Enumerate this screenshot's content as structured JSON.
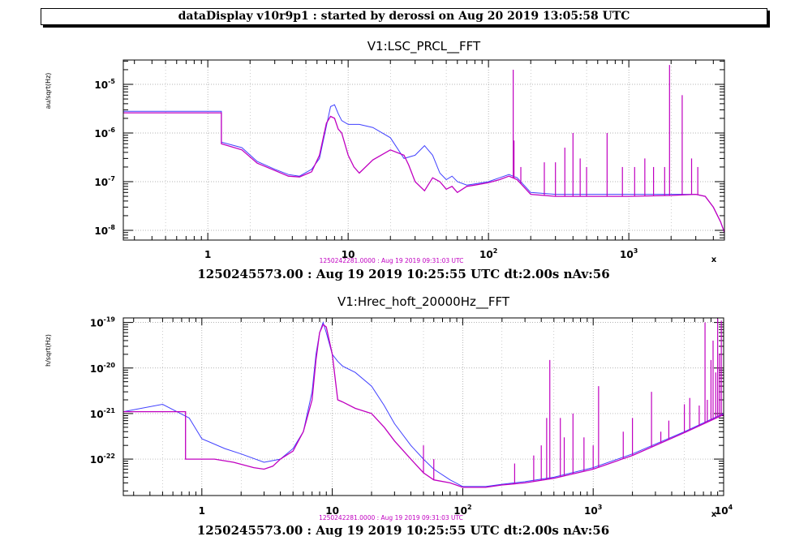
{
  "header": {
    "text": "dataDisplay v10r9p1 : started by derossi on Aug 20 2019 13:05:58 UTC"
  },
  "colors": {
    "series_blue": "#4040ff",
    "series_magenta": "#c000c0",
    "grid": "#9a9a9a"
  },
  "chart_data": [
    {
      "type": "line",
      "title": "V1:LSC_PRCL__FFT",
      "ylabel": "au/sqrt(Hz)",
      "xscale": "log",
      "yscale": "log",
      "xlim": [
        0.25,
        4800
      ],
      "ylim_exp": [
        -8.2,
        -4.5
      ],
      "grid": true,
      "xticks": [
        {
          "v": 1,
          "label": "1",
          "sup": ""
        },
        {
          "v": 10,
          "label": "10",
          "sup": ""
        },
        {
          "v": 100,
          "label": "10",
          "sup": "2"
        },
        {
          "v": 1000,
          "label": "10",
          "sup": "3"
        }
      ],
      "yticks": [
        {
          "e": -5,
          "label": "10",
          "sup": "-5"
        },
        {
          "e": -6,
          "label": "10",
          "sup": "-6"
        },
        {
          "e": -7,
          "label": "10",
          "sup": "-7"
        },
        {
          "e": -8,
          "label": "10",
          "sup": "-8"
        }
      ],
      "clipped_label": "x",
      "timestamp_small": "1250242281.0000 : Aug 19 2019 09:31:03 UTC",
      "footer": "1250245573.00 : Aug 19 2019 10:25:55 UTC dt:2.00s nAv:56",
      "series": [
        {
          "color": "blue",
          "x": [
            0.25,
            1.25,
            1.25,
            1.75,
            2.25,
            3.0,
            3.75,
            4.5,
            5.5,
            6.25,
            7.0,
            7.5,
            8.0,
            8.5,
            9.0,
            10.0,
            12.0,
            15.0,
            20.0,
            25.0,
            30.0,
            35.0,
            40.0,
            45.0,
            50.0,
            55.0,
            60.0,
            70.0,
            80.0,
            100.0,
            120.0,
            140.0,
            160.0,
            200.0,
            300.0,
            500.0,
            1000.0,
            2000.0,
            3000.0,
            3500.0,
            4000.0,
            4500.0,
            4800.0
          ],
          "y": [
            2.8e-06,
            2.8e-06,
            6.5e-07,
            5e-07,
            2.6e-07,
            1.8e-07,
            1.4e-07,
            1.3e-07,
            1.8e-07,
            3e-07,
            1.4e-06,
            3.5e-06,
            3.8e-06,
            2.5e-06,
            1.8e-06,
            1.5e-06,
            1.5e-06,
            1.3e-06,
            8e-07,
            3e-07,
            3.5e-07,
            5.5e-07,
            3.5e-07,
            1.5e-07,
            1.1e-07,
            1.3e-07,
            1e-07,
            8.5e-08,
            9e-08,
            1e-07,
            1.2e-07,
            1.4e-07,
            1.2e-07,
            6e-08,
            5.5e-08,
            5.5e-08,
            5.5e-08,
            5.5e-08,
            5.5e-08,
            5e-08,
            3e-08,
            1.5e-08,
            9e-09
          ]
        },
        {
          "color": "magenta",
          "x": [
            0.25,
            1.25,
            1.25,
            1.75,
            2.25,
            3.0,
            3.75,
            4.5,
            5.5,
            6.25,
            7.0,
            7.5,
            8.0,
            8.5,
            9.0,
            10.0,
            11.0,
            12.0,
            15.0,
            20.0,
            25.0,
            27.0,
            30.0,
            35.0,
            40.0,
            45.0,
            50.0,
            55.0,
            60.0,
            70.0,
            80.0,
            100.0,
            120.0,
            140.0,
            160.0,
            200.0,
            300.0,
            500.0,
            1000.0,
            2000.0,
            3000.0,
            3500.0,
            4000.0,
            4500.0,
            4800.0
          ],
          "y": [
            2.6e-06,
            2.6e-06,
            6e-07,
            4.5e-07,
            2.4e-07,
            1.7e-07,
            1.3e-07,
            1.25e-07,
            1.6e-07,
            3.5e-07,
            1.6e-06,
            2.2e-06,
            2e-06,
            1.2e-06,
            1e-06,
            3.5e-07,
            2e-07,
            1.5e-07,
            2.8e-07,
            4.5e-07,
            3.5e-07,
            2.2e-07,
            1e-07,
            6.5e-08,
            1.2e-07,
            1e-07,
            7e-08,
            8e-08,
            6e-08,
            8e-08,
            8.5e-08,
            9.5e-08,
            1.1e-07,
            1.3e-07,
            1.1e-07,
            5.5e-08,
            5e-08,
            5e-08,
            5e-08,
            5.2e-08,
            5.5e-08,
            5e-08,
            3e-08,
            1.5e-08,
            9e-09
          ]
        }
      ],
      "lines_hz": [
        {
          "f": 150,
          "top": 2e-05
        },
        {
          "f": 152,
          "top": 7e-07
        },
        {
          "f": 170,
          "top": 2e-07
        },
        {
          "f": 250,
          "top": 2.5e-07
        },
        {
          "f": 300,
          "top": 2.5e-07
        },
        {
          "f": 350,
          "top": 5e-07
        },
        {
          "f": 400,
          "top": 1e-06
        },
        {
          "f": 450,
          "top": 3e-07
        },
        {
          "f": 500,
          "top": 2e-07
        },
        {
          "f": 700,
          "top": 1e-06
        },
        {
          "f": 900,
          "top": 2e-07
        },
        {
          "f": 1100,
          "top": 2e-07
        },
        {
          "f": 1300,
          "top": 3e-07
        },
        {
          "f": 1500,
          "top": 2e-07
        },
        {
          "f": 1800,
          "top": 2e-07
        },
        {
          "f": 1950,
          "top": 2.5e-05
        },
        {
          "f": 2400,
          "top": 6e-06
        },
        {
          "f": 2800,
          "top": 3e-07
        },
        {
          "f": 3100,
          "top": 2e-07
        }
      ]
    },
    {
      "type": "line",
      "title": "V1:Hrec_hoft_20000Hz__FFT",
      "ylabel": "h/sqrt(Hz)",
      "xscale": "log",
      "yscale": "log",
      "xlim": [
        0.25,
        10000
      ],
      "ylim_exp": [
        -22.8,
        -18.9
      ],
      "grid": true,
      "xticks": [
        {
          "v": 1,
          "label": "1",
          "sup": ""
        },
        {
          "v": 10,
          "label": "10",
          "sup": ""
        },
        {
          "v": 100,
          "label": "10",
          "sup": "2"
        },
        {
          "v": 1000,
          "label": "10",
          "sup": "3"
        },
        {
          "v": 10000,
          "label": "10",
          "sup": "4"
        }
      ],
      "yticks": [
        {
          "e": -19,
          "label": "10",
          "sup": "-19"
        },
        {
          "e": -20,
          "label": "10",
          "sup": "-20"
        },
        {
          "e": -21,
          "label": "10",
          "sup": "-21"
        },
        {
          "e": -22,
          "label": "10",
          "sup": "-22"
        }
      ],
      "clipped_label": "x",
      "timestamp_small": "1250242281.0000 : Aug 19 2019 09:31:03 UTC",
      "footer": "1250245573.00 : Aug 19 2019 10:25:55 UTC dt:2.00s nAv:56",
      "series": [
        {
          "color": "blue",
          "x": [
            0.25,
            0.5,
            0.8,
            1.0,
            1.5,
            2.0,
            3.0,
            4.0,
            5.0,
            6.0,
            7.0,
            7.5,
            8.0,
            8.5,
            9.0,
            10.0,
            11.0,
            12.0,
            15.0,
            20.0,
            25.0,
            30.0,
            40.0,
            50.0,
            60.0,
            80.0,
            100.0,
            150.0,
            200.0,
            300.0,
            500.0,
            1000.0,
            2000.0,
            5000.0,
            10000.0
          ],
          "y": [
            1.1e-21,
            1.6e-21,
            8e-22,
            2.8e-22,
            1.7e-22,
            1.3e-22,
            8.5e-23,
            1e-22,
            1.7e-22,
            4e-22,
            3e-21,
            2e-20,
            6e-20,
            1e-19,
            6e-20,
            2e-20,
            1.4e-20,
            1.1e-20,
            8e-21,
            4e-21,
            1.5e-21,
            6e-22,
            2e-22,
            1e-22,
            6e-23,
            3.5e-23,
            2.5e-23,
            2.5e-23,
            2.8e-23,
            3.2e-23,
            4e-23,
            6.5e-23,
            1.3e-22,
            4e-22,
            1e-21
          ]
        },
        {
          "color": "magenta",
          "x": [
            0.25,
            0.75,
            0.75,
            1.25,
            1.75,
            2.5,
            3.0,
            3.5,
            4.0,
            5.0,
            6.0,
            7.0,
            7.5,
            8.0,
            8.5,
            9.0,
            10.0,
            11.0,
            12.0,
            15.0,
            20.0,
            25.0,
            30.0,
            40.0,
            50.0,
            60.0,
            80.0,
            100.0,
            150.0,
            200.0,
            300.0,
            500.0,
            1000.0,
            2000.0,
            5000.0,
            10000.0
          ],
          "y": [
            1.1e-21,
            1.1e-21,
            1e-22,
            1e-22,
            8.5e-23,
            6.5e-23,
            6e-23,
            7e-23,
            1e-22,
            1.5e-22,
            4e-22,
            2e-21,
            1.5e-20,
            6e-20,
            9e-20,
            8e-20,
            2e-20,
            2e-21,
            1.8e-21,
            1.3e-21,
            1e-21,
            5e-22,
            2.5e-22,
            1e-22,
            5e-23,
            3.5e-23,
            3e-23,
            2.4e-23,
            2.4e-23,
            2.7e-23,
            3e-23,
            3.8e-23,
            6e-23,
            1.2e-22,
            3.8e-22,
            9.5e-22
          ]
        }
      ],
      "lines_hz": [
        {
          "f": 50,
          "top": 2e-22
        },
        {
          "f": 60,
          "top": 1e-22
        },
        {
          "f": 250,
          "top": 8e-23
        },
        {
          "f": 350,
          "top": 1.2e-22
        },
        {
          "f": 400,
          "top": 2e-22
        },
        {
          "f": 440,
          "top": 8e-22
        },
        {
          "f": 465,
          "top": 1.5e-20
        },
        {
          "f": 560,
          "top": 8e-22
        },
        {
          "f": 600,
          "top": 3e-22
        },
        {
          "f": 700,
          "top": 1e-21
        },
        {
          "f": 850,
          "top": 3e-22
        },
        {
          "f": 1000,
          "top": 2e-22
        },
        {
          "f": 1100,
          "top": 4e-21
        },
        {
          "f": 1700,
          "top": 4e-22
        },
        {
          "f": 2000,
          "top": 8e-22
        },
        {
          "f": 2800,
          "top": 3e-21
        },
        {
          "f": 3300,
          "top": 4e-22
        },
        {
          "f": 3800,
          "top": 7e-22
        },
        {
          "f": 5000,
          "top": 1.6e-21
        },
        {
          "f": 5500,
          "top": 2.2e-21
        },
        {
          "f": 6500,
          "top": 1.5e-21
        },
        {
          "f": 7200,
          "top": 1e-19
        },
        {
          "f": 7500,
          "top": 2e-21
        },
        {
          "f": 8000,
          "top": 1.5e-20
        },
        {
          "f": 8300,
          "top": 4e-20
        },
        {
          "f": 8700,
          "top": 8e-21
        },
        {
          "f": 9000,
          "top": 1.2e-19
        },
        {
          "f": 9300,
          "top": 2e-20
        },
        {
          "f": 9600,
          "top": 1.1e-19
        }
      ]
    }
  ]
}
